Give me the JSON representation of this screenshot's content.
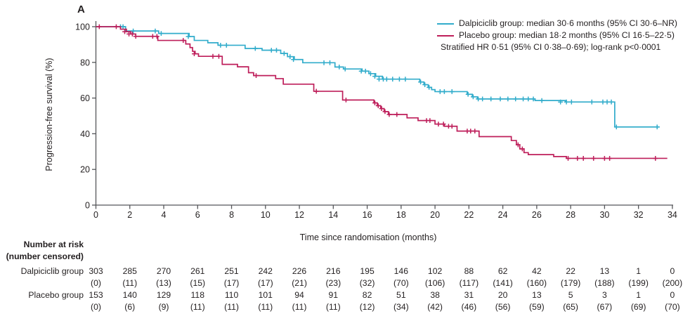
{
  "page": {
    "background": "#ffffff"
  },
  "chart_data": {
    "type": "line",
    "subtype": "kaplan-meier-step",
    "panel_label": "A",
    "xlabel": "Time since randomisation (months)",
    "ylabel": "Progression-free survival (%)",
    "xlim": [
      0,
      34
    ],
    "ylim": [
      0,
      100
    ],
    "x_ticks": [
      0,
      2,
      4,
      6,
      8,
      10,
      12,
      14,
      16,
      18,
      20,
      22,
      24,
      26,
      28,
      30,
      32,
      34
    ],
    "y_ticks": [
      0,
      20,
      40,
      60,
      80,
      100
    ],
    "grid": false,
    "axis_color": "#55565a",
    "text_color": "#231f20",
    "series": [
      {
        "name": "Dalpiciclib group",
        "key": "dalpiciclib",
        "color": "#31accb",
        "median_months": 30.6,
        "steps": [
          [
            0,
            100
          ],
          [
            1.75,
            97.6
          ],
          [
            3.7,
            96.2
          ],
          [
            5.5,
            94.5
          ],
          [
            5.8,
            92.3
          ],
          [
            6.6,
            91.0
          ],
          [
            7.2,
            89.6
          ],
          [
            8.8,
            87.8
          ],
          [
            9.8,
            86.8
          ],
          [
            10.9,
            85.0
          ],
          [
            11.3,
            83.2
          ],
          [
            11.7,
            81.6
          ],
          [
            12.2,
            79.8
          ],
          [
            14.1,
            77.4
          ],
          [
            14.6,
            76.3
          ],
          [
            15.7,
            75.1
          ],
          [
            16.1,
            73.7
          ],
          [
            16.5,
            72.2
          ],
          [
            16.9,
            70.6
          ],
          [
            19.1,
            69.0
          ],
          [
            19.35,
            67.5
          ],
          [
            19.6,
            66.0
          ],
          [
            19.8,
            64.7
          ],
          [
            20.0,
            63.6
          ],
          [
            21.9,
            62.1
          ],
          [
            22.2,
            60.7
          ],
          [
            22.5,
            59.5
          ],
          [
            25.9,
            58.6
          ],
          [
            27.7,
            57.8
          ],
          [
            30.6,
            43.8
          ],
          [
            33.25,
            43.8
          ]
        ],
        "censors": [
          [
            1.45,
            100
          ],
          [
            1.6,
            100
          ],
          [
            2.2,
            97.6
          ],
          [
            3.5,
            97.6
          ],
          [
            3.85,
            96.2
          ],
          [
            5.45,
            94.5
          ],
          [
            7.35,
            89.6
          ],
          [
            7.7,
            89.6
          ],
          [
            9.4,
            87.8
          ],
          [
            10.35,
            86.8
          ],
          [
            10.65,
            86.8
          ],
          [
            11.1,
            85.0
          ],
          [
            11.45,
            83.2
          ],
          [
            11.65,
            81.6
          ],
          [
            13.45,
            79.8
          ],
          [
            13.8,
            79.8
          ],
          [
            14.35,
            77.4
          ],
          [
            14.7,
            76.3
          ],
          [
            15.65,
            75.1
          ],
          [
            15.9,
            75.1
          ],
          [
            16.2,
            73.7
          ],
          [
            16.45,
            72.2
          ],
          [
            16.7,
            70.6
          ],
          [
            16.95,
            70.6
          ],
          [
            17.15,
            70.6
          ],
          [
            17.5,
            70.6
          ],
          [
            17.9,
            70.6
          ],
          [
            18.25,
            70.6
          ],
          [
            19.15,
            69.0
          ],
          [
            19.4,
            67.5
          ],
          [
            19.65,
            66.0
          ],
          [
            20.3,
            63.6
          ],
          [
            20.55,
            63.6
          ],
          [
            21.0,
            63.6
          ],
          [
            21.95,
            62.1
          ],
          [
            22.25,
            60.7
          ],
          [
            22.55,
            59.5
          ],
          [
            22.8,
            59.5
          ],
          [
            23.3,
            59.5
          ],
          [
            23.85,
            59.5
          ],
          [
            24.3,
            59.5
          ],
          [
            24.75,
            59.5
          ],
          [
            25.2,
            59.5
          ],
          [
            25.5,
            59.5
          ],
          [
            25.8,
            59.5
          ],
          [
            26.3,
            58.6
          ],
          [
            27.4,
            57.8
          ],
          [
            27.75,
            57.8
          ],
          [
            28.05,
            57.8
          ],
          [
            29.25,
            57.8
          ],
          [
            29.9,
            57.8
          ],
          [
            30.15,
            57.8
          ],
          [
            30.4,
            57.8
          ],
          [
            30.7,
            43.8
          ],
          [
            33.1,
            43.8
          ]
        ]
      },
      {
        "name": "Placebo group",
        "key": "placebo",
        "color": "#be1e5a",
        "median_months": 18.2,
        "steps": [
          [
            0,
            100
          ],
          [
            1.45,
            98.6
          ],
          [
            1.8,
            97.2
          ],
          [
            2.05,
            95.9
          ],
          [
            2.35,
            94.6
          ],
          [
            3.65,
            92.3
          ],
          [
            5.3,
            90.3
          ],
          [
            5.55,
            88.3
          ],
          [
            5.7,
            86.2
          ],
          [
            5.85,
            84.8
          ],
          [
            6.05,
            83.4
          ],
          [
            7.45,
            78.9
          ],
          [
            8.35,
            77.5
          ],
          [
            9.0,
            74.2
          ],
          [
            9.3,
            72.6
          ],
          [
            10.6,
            70.9
          ],
          [
            11.05,
            67.8
          ],
          [
            12.85,
            63.8
          ],
          [
            14.55,
            58.9
          ],
          [
            16.4,
            57.3
          ],
          [
            16.6,
            55.7
          ],
          [
            16.8,
            54.1
          ],
          [
            17.0,
            52.4
          ],
          [
            17.25,
            50.8
          ],
          [
            18.35,
            48.9
          ],
          [
            19.0,
            47.4
          ],
          [
            20.0,
            45.4
          ],
          [
            20.55,
            44.2
          ],
          [
            21.3,
            41.5
          ],
          [
            22.6,
            38.4
          ],
          [
            24.5,
            36.2
          ],
          [
            24.8,
            33.8
          ],
          [
            25.0,
            31.5
          ],
          [
            25.25,
            29.4
          ],
          [
            25.5,
            28.3
          ],
          [
            27.0,
            27.2
          ],
          [
            27.75,
            26.2
          ],
          [
            33.7,
            26.2
          ]
        ],
        "censors": [
          [
            0.2,
            100
          ],
          [
            1.2,
            100
          ],
          [
            1.7,
            97.2
          ],
          [
            1.95,
            95.9
          ],
          [
            2.15,
            95.9
          ],
          [
            2.35,
            94.6
          ],
          [
            3.35,
            94.6
          ],
          [
            3.6,
            94.6
          ],
          [
            5.15,
            92.3
          ],
          [
            5.8,
            84.8
          ],
          [
            6.9,
            83.4
          ],
          [
            7.25,
            83.4
          ],
          [
            9.45,
            72.6
          ],
          [
            13.0,
            63.8
          ],
          [
            14.75,
            58.9
          ],
          [
            16.45,
            57.3
          ],
          [
            16.65,
            55.7
          ],
          [
            16.85,
            54.1
          ],
          [
            17.05,
            52.4
          ],
          [
            17.3,
            50.8
          ],
          [
            17.75,
            50.8
          ],
          [
            19.5,
            47.4
          ],
          [
            19.7,
            47.4
          ],
          [
            20.2,
            45.4
          ],
          [
            20.5,
            45.4
          ],
          [
            20.8,
            44.2
          ],
          [
            21.0,
            44.2
          ],
          [
            21.9,
            41.5
          ],
          [
            22.1,
            41.5
          ],
          [
            22.35,
            41.5
          ],
          [
            24.9,
            33.8
          ],
          [
            25.15,
            31.5
          ],
          [
            27.85,
            26.2
          ],
          [
            28.4,
            26.2
          ],
          [
            28.75,
            26.2
          ],
          [
            29.35,
            26.2
          ],
          [
            30.0,
            26.2
          ],
          [
            30.3,
            26.2
          ],
          [
            33.0,
            26.2
          ]
        ]
      }
    ]
  },
  "legend": {
    "entries": [
      {
        "label": "Dalpiciclib group: median 30·6 months (95% CI 30·6–NR)",
        "color": "#31accb"
      },
      {
        "label": "Placebo group: median 18·2 months (95% CI 16·5–22·5)",
        "color": "#be1e5a"
      }
    ],
    "note": "Stratified HR 0·51 (95% CI 0·38–0·69); log-rank p<0·0001"
  },
  "risk_table": {
    "header_line1": "Number at risk",
    "header_line2": "(number censored)",
    "timepoints": [
      0,
      2,
      4,
      6,
      8,
      10,
      12,
      14,
      16,
      18,
      20,
      22,
      24,
      26,
      28,
      30,
      32,
      34
    ],
    "rows": [
      {
        "label": "Dalpiciclib group",
        "at_risk": [
          "303",
          "285",
          "270",
          "261",
          "251",
          "242",
          "226",
          "216",
          "195",
          "146",
          "102",
          "88",
          "62",
          "42",
          "22",
          "13",
          "1",
          "0"
        ],
        "censored": [
          "(0)",
          "(11)",
          "(13)",
          "(15)",
          "(17)",
          "(17)",
          "(21)",
          "(23)",
          "(32)",
          "(70)",
          "(106)",
          "(117)",
          "(141)",
          "(160)",
          "(179)",
          "(188)",
          "(199)",
          "(200)"
        ]
      },
      {
        "label": "Placebo group",
        "at_risk": [
          "153",
          "140",
          "129",
          "118",
          "110",
          "101",
          "94",
          "91",
          "82",
          "51",
          "38",
          "31",
          "20",
          "13",
          "5",
          "3",
          "1",
          "0"
        ],
        "censored": [
          "(0)",
          "(6)",
          "(9)",
          "(11)",
          "(11)",
          "(11)",
          "(11)",
          "(11)",
          "(12)",
          "(34)",
          "(42)",
          "(46)",
          "(56)",
          "(59)",
          "(65)",
          "(67)",
          "(69)",
          "(70)"
        ]
      }
    ]
  }
}
